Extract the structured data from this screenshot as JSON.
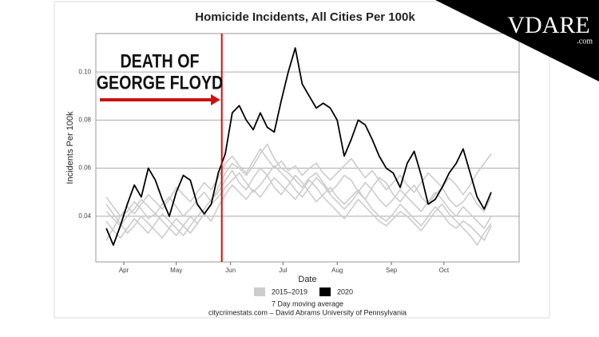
{
  "chart_data": {
    "type": "line",
    "title": "Homicide Incidents, All Cities Per 100k",
    "x_label": "Date",
    "y_label": "Incidents Per 100k",
    "caption": [
      "7 Day moving average",
      "citycrimestats.com –  David Abrams University of Pennsylvania"
    ],
    "logo": {
      "text": "VDARE",
      "sub": ".com"
    },
    "annotation": {
      "lines": [
        "DEATH OF",
        "GEORGE FLOYD"
      ],
      "x": 148,
      "color": "#cc1111"
    },
    "xlim": [
      76,
      318
    ],
    "ylim": [
      0.021,
      0.116
    ],
    "xticks": [
      {
        "value": 92,
        "label": "Apr"
      },
      {
        "value": 122,
        "label": "May"
      },
      {
        "value": 153,
        "label": "Jun"
      },
      {
        "value": 183,
        "label": "Jul"
      },
      {
        "value": 214,
        "label": "Aug"
      },
      {
        "value": 245,
        "label": "Sep"
      },
      {
        "value": 275,
        "label": "Oct"
      }
    ],
    "yticks": [
      0.04,
      0.06,
      0.08,
      {
        "value": 0.1,
        "label": "0.10"
      }
    ],
    "grid": true,
    "x": [
      82,
      86,
      90,
      94,
      98,
      102,
      106,
      110,
      114,
      118,
      122,
      126,
      130,
      134,
      138,
      142,
      146,
      150,
      154,
      158,
      162,
      166,
      170,
      174,
      178,
      182,
      186,
      190,
      194,
      198,
      202,
      206,
      210,
      214,
      218,
      222,
      226,
      230,
      234,
      238,
      242,
      246,
      250,
      254,
      258,
      262,
      266,
      270,
      274,
      278,
      282,
      286,
      290,
      294,
      298,
      302
    ],
    "series": [
      {
        "name": "2015–2019",
        "color": "#cccccc",
        "values": [
          [
            0.048,
            0.044,
            0.04,
            0.042,
            0.046,
            0.043,
            0.039,
            0.041,
            0.045,
            0.048,
            0.044,
            0.04,
            0.043,
            0.047,
            0.05,
            0.046,
            0.052,
            0.058,
            0.062,
            0.06,
            0.057,
            0.061,
            0.066,
            0.07,
            0.064,
            0.06,
            0.058,
            0.055,
            0.052,
            0.056,
            0.058,
            0.054,
            0.05,
            0.053,
            0.057,
            0.055,
            0.05,
            0.047,
            0.052,
            0.056,
            0.054,
            0.049,
            0.046,
            0.05,
            0.053,
            0.048,
            0.045,
            0.049,
            0.052,
            0.047,
            0.044,
            0.046,
            0.05,
            0.045,
            0.042,
            0.048
          ],
          [
            0.038,
            0.034,
            0.031,
            0.035,
            0.039,
            0.036,
            0.033,
            0.037,
            0.041,
            0.038,
            0.035,
            0.032,
            0.036,
            0.04,
            0.043,
            0.047,
            0.05,
            0.055,
            0.059,
            0.054,
            0.051,
            0.056,
            0.06,
            0.057,
            0.052,
            0.049,
            0.053,
            0.057,
            0.054,
            0.05,
            0.046,
            0.049,
            0.052,
            0.048,
            0.045,
            0.048,
            0.051,
            0.047,
            0.043,
            0.04,
            0.038,
            0.041,
            0.045,
            0.042,
            0.039,
            0.036,
            0.04,
            0.044,
            0.041,
            0.037,
            0.035,
            0.038,
            0.036,
            0.033,
            0.03,
            0.036
          ],
          [
            0.03,
            0.035,
            0.04,
            0.044,
            0.041,
            0.045,
            0.049,
            0.046,
            0.043,
            0.047,
            0.052,
            0.049,
            0.046,
            0.05,
            0.054,
            0.051,
            0.056,
            0.062,
            0.065,
            0.061,
            0.058,
            0.063,
            0.068,
            0.064,
            0.06,
            0.063,
            0.059,
            0.061,
            0.057,
            0.06,
            0.062,
            0.058,
            0.055,
            0.058,
            0.061,
            0.064,
            0.06,
            0.056,
            0.059,
            0.055,
            0.051,
            0.054,
            0.057,
            0.053,
            0.05,
            0.054,
            0.058,
            0.055,
            0.052,
            0.056,
            0.053,
            0.049,
            0.053,
            0.058,
            0.062,
            0.066
          ],
          [
            0.042,
            0.039,
            0.036,
            0.04,
            0.043,
            0.047,
            0.044,
            0.041,
            0.038,
            0.035,
            0.032,
            0.036,
            0.04,
            0.037,
            0.041,
            0.045,
            0.048,
            0.052,
            0.055,
            0.058,
            0.054,
            0.05,
            0.053,
            0.057,
            0.061,
            0.058,
            0.055,
            0.051,
            0.048,
            0.052,
            0.056,
            0.053,
            0.049,
            0.046,
            0.043,
            0.046,
            0.05,
            0.054,
            0.051,
            0.047,
            0.044,
            0.047,
            0.051,
            0.048,
            0.045,
            0.042,
            0.046,
            0.05,
            0.047,
            0.043,
            0.04,
            0.044,
            0.041,
            0.038,
            0.035,
            0.04
          ],
          [
            0.045,
            0.041,
            0.037,
            0.033,
            0.036,
            0.04,
            0.037,
            0.034,
            0.031,
            0.035,
            0.039,
            0.036,
            0.033,
            0.037,
            0.041,
            0.038,
            0.044,
            0.049,
            0.053,
            0.05,
            0.047,
            0.051,
            0.048,
            0.052,
            0.056,
            0.053,
            0.05,
            0.047,
            0.051,
            0.055,
            0.052,
            0.048,
            0.045,
            0.042,
            0.039,
            0.043,
            0.047,
            0.044,
            0.041,
            0.038,
            0.036,
            0.039,
            0.042,
            0.04,
            0.037,
            0.034,
            0.038,
            0.042,
            0.045,
            0.041,
            0.038,
            0.035,
            0.032,
            0.028,
            0.033,
            0.037
          ]
        ]
      },
      {
        "name": "2020",
        "color": "#000000",
        "values": [
          0.035,
          0.028,
          0.036,
          0.045,
          0.053,
          0.048,
          0.06,
          0.055,
          0.047,
          0.04,
          0.05,
          0.057,
          0.055,
          0.045,
          0.041,
          0.045,
          0.058,
          0.066,
          0.083,
          0.086,
          0.08,
          0.076,
          0.083,
          0.077,
          0.075,
          0.088,
          0.1,
          0.11,
          0.095,
          0.09,
          0.085,
          0.087,
          0.085,
          0.08,
          0.065,
          0.072,
          0.08,
          0.078,
          0.072,
          0.065,
          0.06,
          0.058,
          0.052,
          0.062,
          0.067,
          0.057,
          0.045,
          0.047,
          0.052,
          0.058,
          0.062,
          0.068,
          0.058,
          0.048,
          0.043,
          0.05
        ]
      }
    ]
  }
}
